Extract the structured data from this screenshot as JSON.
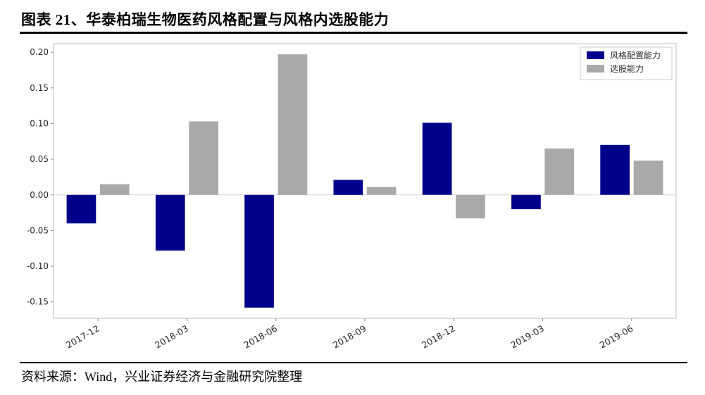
{
  "header": {
    "title": "图表 21、华泰柏瑞生物医药风格配置与风格内选股能力"
  },
  "footer": {
    "source": "资料来源：Wind，兴业证券经济与金融研究院整理"
  },
  "chart_data": {
    "type": "bar",
    "title": "",
    "categories": [
      "2017-12",
      "2018-03",
      "2018-06",
      "2018-09",
      "2018-12",
      "2019-03",
      "2019-06"
    ],
    "series": [
      {
        "name": "风格配置能力",
        "color": "#00008B",
        "values": [
          -0.04,
          -0.078,
          -0.158,
          0.021,
          0.101,
          -0.02,
          0.07
        ]
      },
      {
        "name": "选股能力",
        "color": "#A9A9A9",
        "values": [
          0.015,
          0.103,
          0.197,
          0.011,
          -0.033,
          0.065,
          0.048
        ]
      }
    ],
    "ylim": [
      -0.173,
      0.212
    ],
    "yticks": [
      -0.15,
      -0.1,
      -0.05,
      0.0,
      0.05,
      0.1,
      0.15,
      0.2
    ],
    "xlabel": "",
    "ylabel": "",
    "grid": false,
    "legend_position": "top-right"
  }
}
